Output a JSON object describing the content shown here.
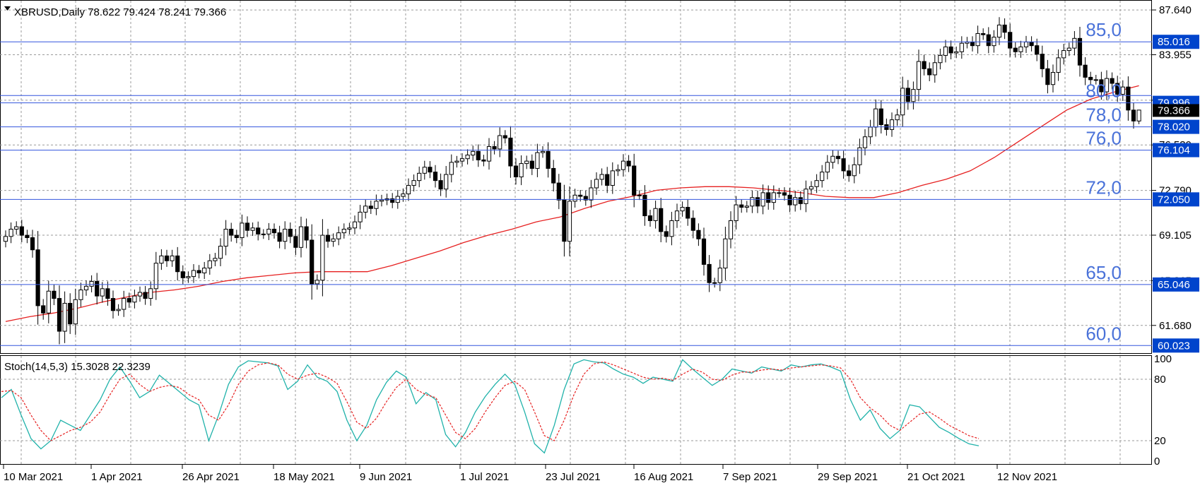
{
  "main_panel": {
    "symbol_header": "XBRUSD,Daily  78.622 79.424 78.241 79.366",
    "expand_icon": "triangle-down-icon",
    "y_tick_labels": [
      "87.640",
      "83.955",
      "80.215",
      "76.530",
      "72.790",
      "69.105",
      "65.365",
      "61.680"
    ]
  },
  "stoch_panel": {
    "header": "Stoch(14,5,3) 15.3028 22.3239",
    "y_tick_labels": [
      "100",
      "80",
      "20",
      "0"
    ]
  },
  "x_axis": {
    "labels": [
      "10 Mar 2021",
      "1 Apr 2021",
      "26 Apr 2021",
      "18 May 2021",
      "9 Jun 2021",
      "1 Jul 2021",
      "23 Jul 2021",
      "16 Aug 2021",
      "7 Sep 2021",
      "29 Sep 2021",
      "21 Oct 2021",
      "12 Nov 2021"
    ]
  },
  "colors": {
    "level_line": "#3355dd",
    "level_text": "#4a72d9",
    "ma_line": "#e62020",
    "stoch_main": "#20b2aa",
    "stoch_signal": "#e62020",
    "price_box": "#0044cc",
    "dark_box": "#000000"
  },
  "chart_data": {
    "type": "candlestick",
    "symbol": "XBRUSD",
    "timeframe": "Daily",
    "ylim": [
      59.4,
      88.4
    ],
    "ohlc_last": {
      "open": 78.622,
      "high": 79.424,
      "low": 78.241,
      "close": 79.366
    },
    "dates": [
      "10 Mar 2021",
      "1 Apr 2021",
      "26 Apr 2021",
      "18 May 2021",
      "9 Jun 2021",
      "1 Jul 2021",
      "23 Jul 2021",
      "16 Aug 2021",
      "7 Sep 2021",
      "29 Sep 2021",
      "21 Oct 2021",
      "12 Nov 2021"
    ],
    "closes": [
      69.0,
      69.6,
      69.8,
      69.1,
      68.9,
      67.9,
      63.3,
      62.7,
      64.5,
      63.9,
      61.2,
      63.5,
      61.8,
      63.8,
      64.6,
      64.9,
      65.3,
      64.1,
      64.7,
      63.9,
      62.9,
      63.0,
      63.9,
      63.6,
      64.1,
      64.4,
      63.9,
      64.7,
      66.8,
      67.4,
      67.0,
      67.4,
      66.1,
      65.6,
      65.7,
      66.2,
      66.0,
      66.4,
      67.0,
      67.2,
      68.2,
      69.6,
      69.1,
      68.9,
      70.1,
      69.5,
      69.7,
      69.2,
      69.2,
      69.6,
      69.3,
      68.6,
      69.6,
      69.0,
      68.1,
      69.8,
      68.7,
      65.1,
      65.4,
      69.1,
      68.6,
      68.8,
      69.3,
      69.6,
      69.7,
      70.2,
      71.0,
      71.5,
      71.3,
      71.9,
      72.0,
      72.1,
      71.8,
      72.3,
      72.5,
      73.2,
      73.6,
      74.2,
      74.7,
      74.3,
      73.6,
      72.9,
      74.1,
      75.1,
      75.2,
      75.4,
      75.7,
      76.0,
      75.3,
      75.2,
      76.4,
      76.2,
      77.3,
      77.1,
      74.8,
      73.9,
      75.0,
      75.2,
      74.6,
      75.9,
      76.0,
      74.6,
      73.4,
      72.0,
      68.6,
      71.9,
      72.4,
      72.3,
      72.0,
      73.0,
      73.7,
      74.1,
      73.2,
      74.4,
      74.5,
      75.2,
      74.8,
      72.4,
      72.4,
      70.7,
      70.3,
      71.3,
      69.4,
      69.0,
      70.3,
      71.1,
      71.4,
      70.5,
      69.5,
      68.8,
      66.7,
      65.2,
      65.2,
      66.4,
      68.8,
      70.3,
      71.6,
      71.4,
      71.5,
      72.2,
      71.5,
      72.6,
      71.8,
      72.6,
      72.6,
      72.4,
      71.6,
      72.2,
      71.7,
      72.9,
      73.1,
      73.6,
      74.3,
      75.1,
      75.6,
      75.4,
      74.4,
      74.0,
      74.9,
      76.3,
      77.2,
      78.0,
      79.5,
      78.2,
      77.8,
      78.6,
      79.0,
      81.2,
      80.1,
      81.1,
      83.4,
      82.8,
      82.3,
      83.3,
      83.9,
      84.6,
      84.1,
      84.2,
      84.9,
      85.0,
      84.7,
      85.7,
      85.6,
      84.7,
      85.4,
      86.4,
      85.8,
      84.5,
      84.2,
      84.6,
      85.0,
      84.7,
      84.0,
      82.8,
      81.5,
      82.5,
      83.7,
      84.3,
      84.5,
      85.3,
      83.1,
      82.1,
      81.9,
      81.9,
      80.9,
      82.0,
      81.6,
      80.7,
      81.3,
      79.4,
      78.5,
      79.4
    ],
    "moving_average": [
      62.0,
      62.4,
      62.7,
      63.1,
      63.6,
      64.0,
      64.4,
      64.6,
      64.9,
      65.3,
      65.6,
      65.8,
      66.0,
      66.1,
      66.1,
      66.1,
      66.6,
      67.2,
      67.8,
      68.5,
      69.1,
      69.6,
      70.2,
      70.6,
      71.3,
      71.9,
      72.3,
      72.8,
      73.0,
      73.1,
      73.1,
      73.0,
      72.8,
      72.6,
      72.3,
      72.2,
      72.2,
      72.6,
      73.2,
      73.7,
      74.4,
      75.5,
      76.8,
      78.1,
      79.4,
      80.3,
      80.9,
      81.4
    ],
    "levels": [
      {
        "label": "85,0",
        "value": 85.016,
        "tag": "85.016"
      },
      {
        "label": "80,0",
        "value": 79.996,
        "tag": "79.996"
      },
      {
        "label": "78,0",
        "value": 78.02,
        "tag": "78.020"
      },
      {
        "label": "76,0",
        "value": 76.104,
        "tag": "76.104"
      },
      {
        "label": "72,0",
        "value": 72.05,
        "tag": "72.050"
      },
      {
        "label": "65,0",
        "value": 65.046,
        "tag": "65.046"
      },
      {
        "label": "60,0",
        "value": 60.023,
        "tag": "60.023"
      }
    ],
    "current_price": {
      "value": 79.366,
      "tag": "79.366"
    },
    "extra_level": {
      "value": 80.6
    },
    "stochastic": {
      "k_period": 14,
      "d_period": 5,
      "slowing": 3,
      "main": 15.3028,
      "signal": 22.3239,
      "ylim": [
        0,
        100
      ],
      "main_series": [
        62,
        70,
        45,
        22,
        12,
        20,
        40,
        35,
        30,
        45,
        60,
        80,
        92,
        78,
        62,
        68,
        84,
        76,
        68,
        60,
        55,
        20,
        45,
        75,
        92,
        98,
        97,
        96,
        93,
        70,
        78,
        94,
        82,
        78,
        68,
        40,
        20,
        35,
        60,
        77,
        88,
        82,
        56,
        67,
        60,
        26,
        14,
        28,
        48,
        63,
        75,
        85,
        75,
        48,
        17,
        8,
        35,
        70,
        95,
        99,
        97,
        96,
        90,
        85,
        82,
        76,
        82,
        80,
        78,
        99,
        90,
        82,
        74,
        80,
        90,
        88,
        86,
        92,
        90,
        88,
        94,
        92,
        94,
        95,
        92,
        88,
        60,
        40,
        50,
        32,
        22,
        30,
        55,
        53,
        43,
        33,
        28,
        22,
        17,
        15
      ],
      "signal_series": [
        68,
        69,
        62,
        45,
        30,
        20,
        25,
        30,
        33,
        38,
        48,
        65,
        80,
        85,
        75,
        68,
        72,
        74,
        72,
        65,
        60,
        45,
        40,
        55,
        75,
        88,
        94,
        96,
        94,
        85,
        80,
        84,
        86,
        82,
        76,
        58,
        38,
        32,
        42,
        58,
        72,
        80,
        70,
        65,
        62,
        45,
        28,
        22,
        32,
        48,
        62,
        74,
        78,
        70,
        48,
        25,
        20,
        40,
        65,
        85,
        95,
        97,
        94,
        90,
        86,
        82,
        80,
        81,
        79,
        85,
        90,
        87,
        80,
        79,
        84,
        87,
        87,
        89,
        90,
        89,
        91,
        92,
        93,
        94,
        93,
        91,
        80,
        62,
        52,
        45,
        35,
        30,
        38,
        46,
        48,
        42,
        35,
        30,
        25,
        22
      ]
    }
  }
}
